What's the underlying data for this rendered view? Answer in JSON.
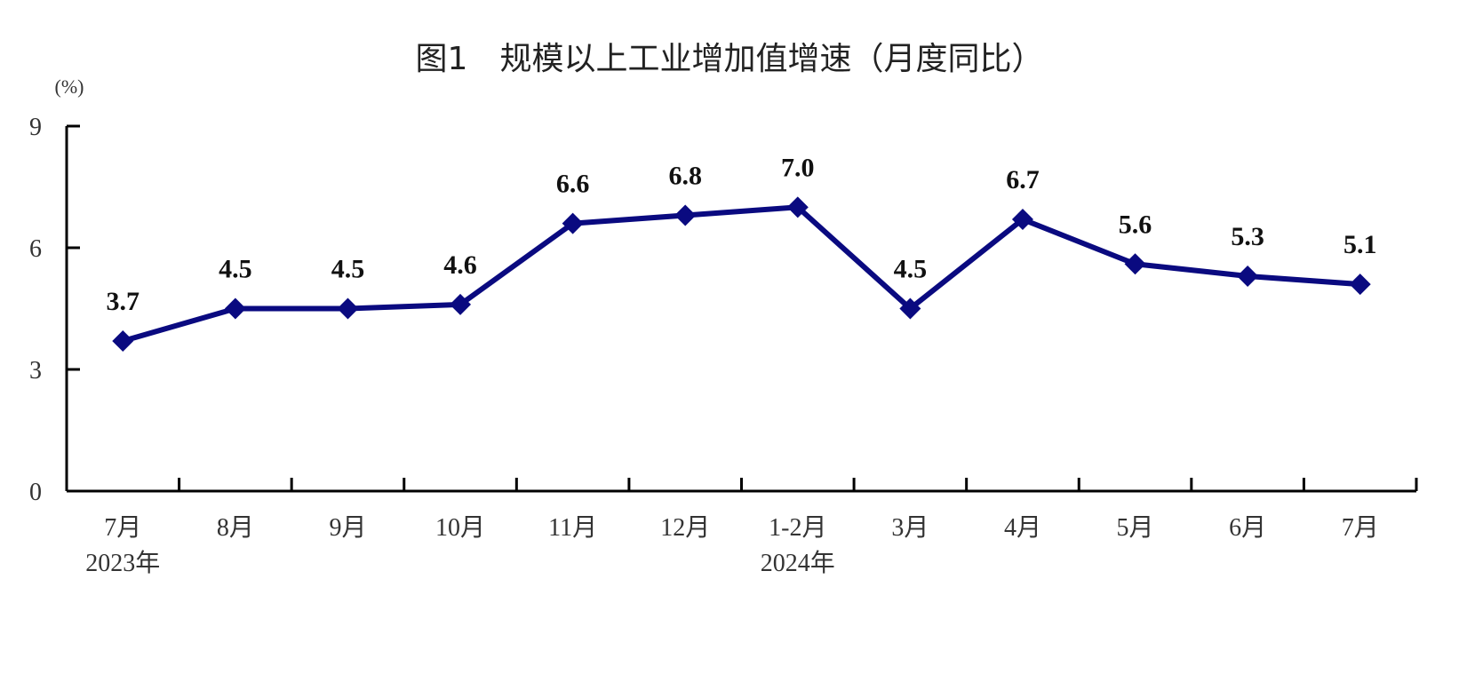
{
  "chart_data": {
    "type": "line",
    "title": "图1　规模以上工业增加值增速（月度同比）",
    "ylabel": "(%)",
    "xlabel": "",
    "ylim": [
      0,
      9
    ],
    "yticks": [
      "0",
      "3",
      "6",
      "9"
    ],
    "categories": [
      "7月",
      "8月",
      "9月",
      "10月",
      "11月",
      "12月",
      "1-2月",
      "3月",
      "4月",
      "5月",
      "6月",
      "7月"
    ],
    "year_labels": [
      {
        "under": 0,
        "text": "2023年"
      },
      {
        "under": 6,
        "text": "2024年"
      }
    ],
    "series": [
      {
        "values": [
          3.7,
          4.5,
          4.5,
          4.6,
          6.6,
          6.8,
          7.0,
          4.5,
          6.7,
          5.6,
          5.3,
          5.1
        ]
      }
    ],
    "data_labels": [
      "3.7",
      "4.5",
      "4.5",
      "4.6",
      "6.6",
      "6.8",
      "7.0",
      "4.5",
      "6.7",
      "5.6",
      "5.3",
      "5.1"
    ],
    "marker": "diamond",
    "line_color": "#0a0a80",
    "grid": false,
    "legend": "none"
  }
}
